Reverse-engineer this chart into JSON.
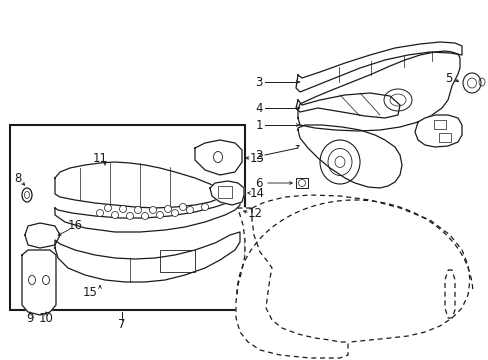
{
  "background_color": "#ffffff",
  "line_color": "#1a1a1a",
  "fig_width": 4.89,
  "fig_height": 3.6,
  "dpi": 100,
  "label_font": 8.5
}
